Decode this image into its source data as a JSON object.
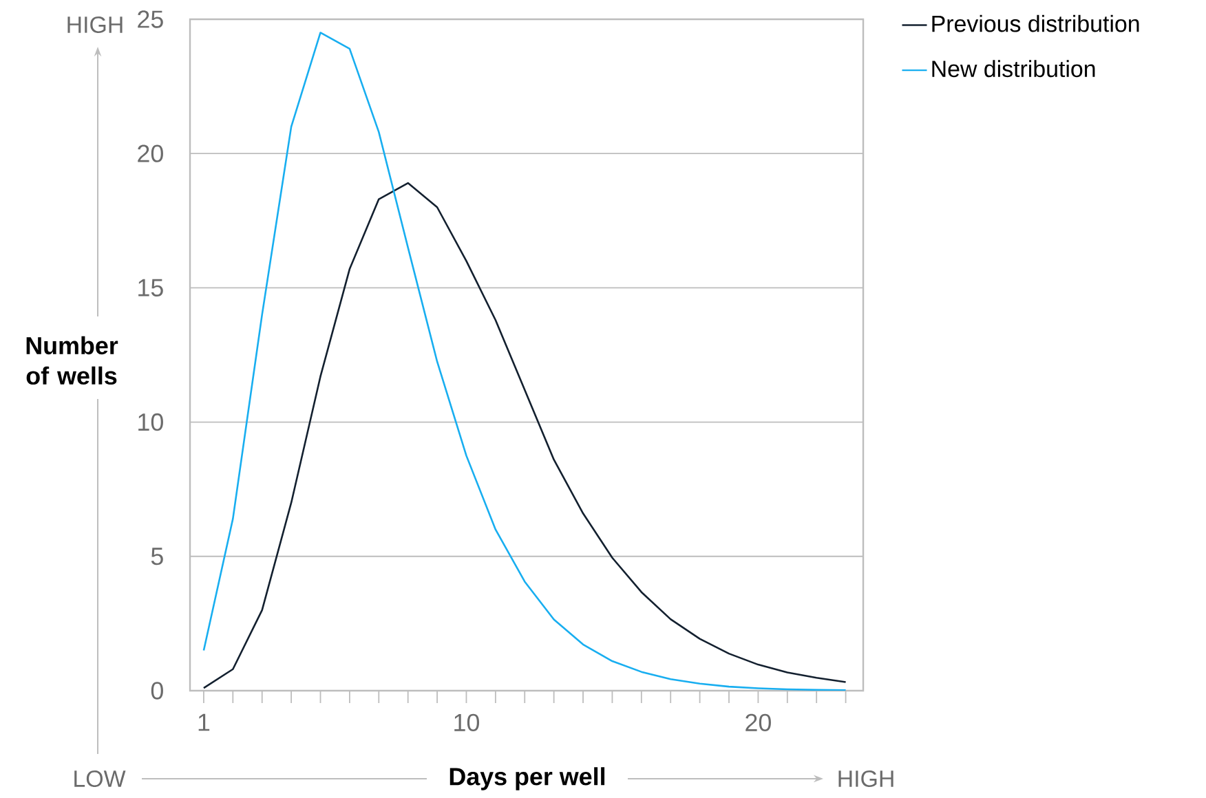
{
  "chart_data": {
    "type": "line",
    "xlabel": "Days per well",
    "ylabel": "Number of wells",
    "annotations": [
      "HIGH",
      "LOW",
      "HIGH"
    ],
    "x": [
      1,
      2,
      3,
      4,
      5,
      6,
      7,
      8,
      9,
      10,
      11,
      12,
      13,
      14,
      15,
      16,
      17,
      18,
      19,
      20,
      21,
      22,
      23
    ],
    "series": [
      {
        "name": "Previous distribution",
        "color": "#13202f",
        "values": [
          0.1,
          0.8,
          3.0,
          7.0,
          11.7,
          15.7,
          18.3,
          18.9,
          18.0,
          16.0,
          13.8,
          11.2,
          8.6,
          6.6,
          4.95,
          3.67,
          2.66,
          1.93,
          1.38,
          0.97,
          0.68,
          0.48,
          0.32
        ]
      },
      {
        "name": "New distribution",
        "color": "#18aef0",
        "values": [
          1.5,
          6.4,
          14.0,
          21.0,
          24.5,
          23.9,
          20.8,
          16.5,
          12.25,
          8.75,
          6.0,
          4.06,
          2.65,
          1.72,
          1.1,
          0.7,
          0.43,
          0.26,
          0.15,
          0.09,
          0.05,
          0.03,
          0.02
        ]
      }
    ],
    "xlim": [
      0.53,
      23.6
    ],
    "ylim": [
      0,
      25
    ],
    "xticks": [
      1,
      {
        "value": 2,
        "label": null
      },
      {
        "value": 3,
        "label": null
      },
      {
        "value": 4,
        "label": null
      },
      {
        "value": 5,
        "label": null
      },
      {
        "value": 6,
        "label": null
      },
      {
        "value": 7,
        "label": null
      },
      {
        "value": 8,
        "label": null
      },
      {
        "value": 9,
        "label": null
      },
      10,
      {
        "value": 11,
        "label": null
      },
      {
        "value": 12,
        "label": null
      },
      {
        "value": 13,
        "label": null
      },
      {
        "value": 14,
        "label": null
      },
      {
        "value": 15,
        "label": null
      },
      {
        "value": 16,
        "label": null
      },
      {
        "value": 17,
        "label": null
      },
      {
        "value": 18,
        "label": null
      },
      {
        "value": 19,
        "label": null
      },
      20,
      {
        "value": 21,
        "label": null
      },
      {
        "value": 22,
        "label": null
      },
      {
        "value": 23,
        "label": null
      }
    ],
    "yticks": [
      0,
      5,
      10,
      15,
      20,
      25
    ],
    "grid": "y",
    "legend": "top right",
    "line_style": "solid"
  }
}
